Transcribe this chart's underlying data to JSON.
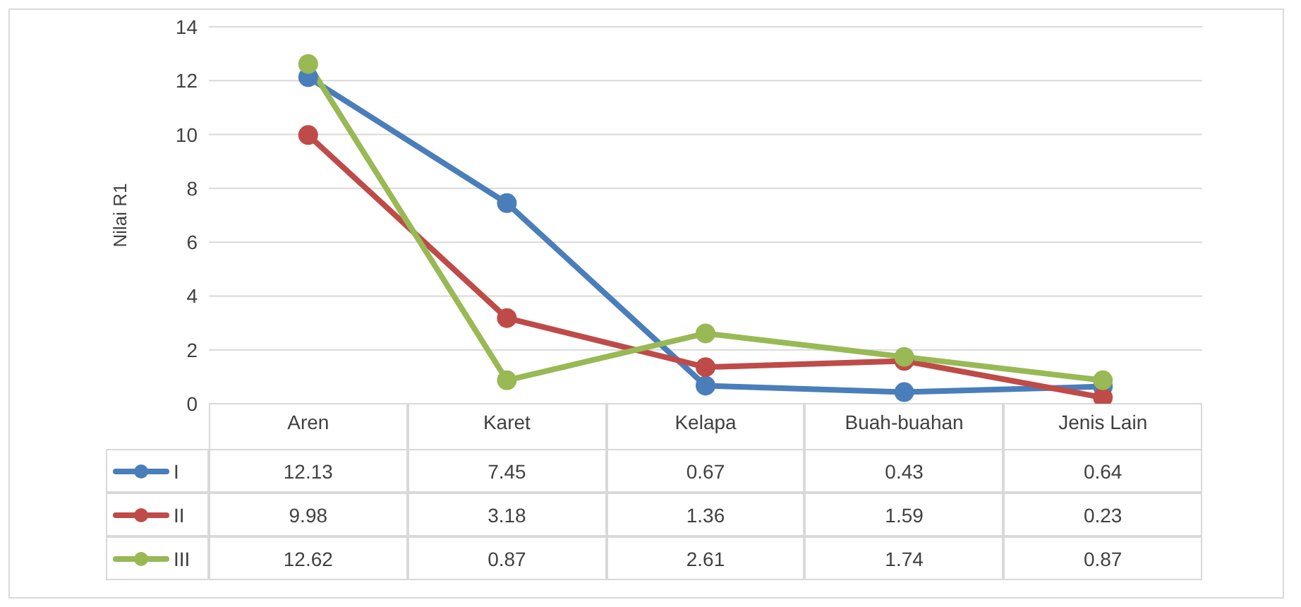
{
  "chart_data": {
    "type": "line",
    "ylabel": "Nilai R1",
    "categories": [
      "Aren",
      "Karet",
      "Kelapa",
      "Buah-buahan",
      "Jenis Lain"
    ],
    "series": [
      {
        "name": "I",
        "color": "#4a7ebb",
        "values": [
          12.13,
          7.45,
          0.67,
          0.43,
          0.64
        ]
      },
      {
        "name": "II",
        "color": "#be4b48",
        "values": [
          9.98,
          3.18,
          1.36,
          1.59,
          0.23
        ]
      },
      {
        "name": "III",
        "color": "#98b954",
        "values": [
          12.62,
          0.87,
          2.61,
          1.74,
          0.87
        ]
      }
    ],
    "ylim": [
      0,
      14
    ],
    "yticks": [
      0,
      2,
      4,
      6,
      8,
      10,
      12,
      14
    ],
    "grid": "y",
    "marker": "circle",
    "line_style": "solid",
    "data_labels": true,
    "legend": "bottom left"
  }
}
